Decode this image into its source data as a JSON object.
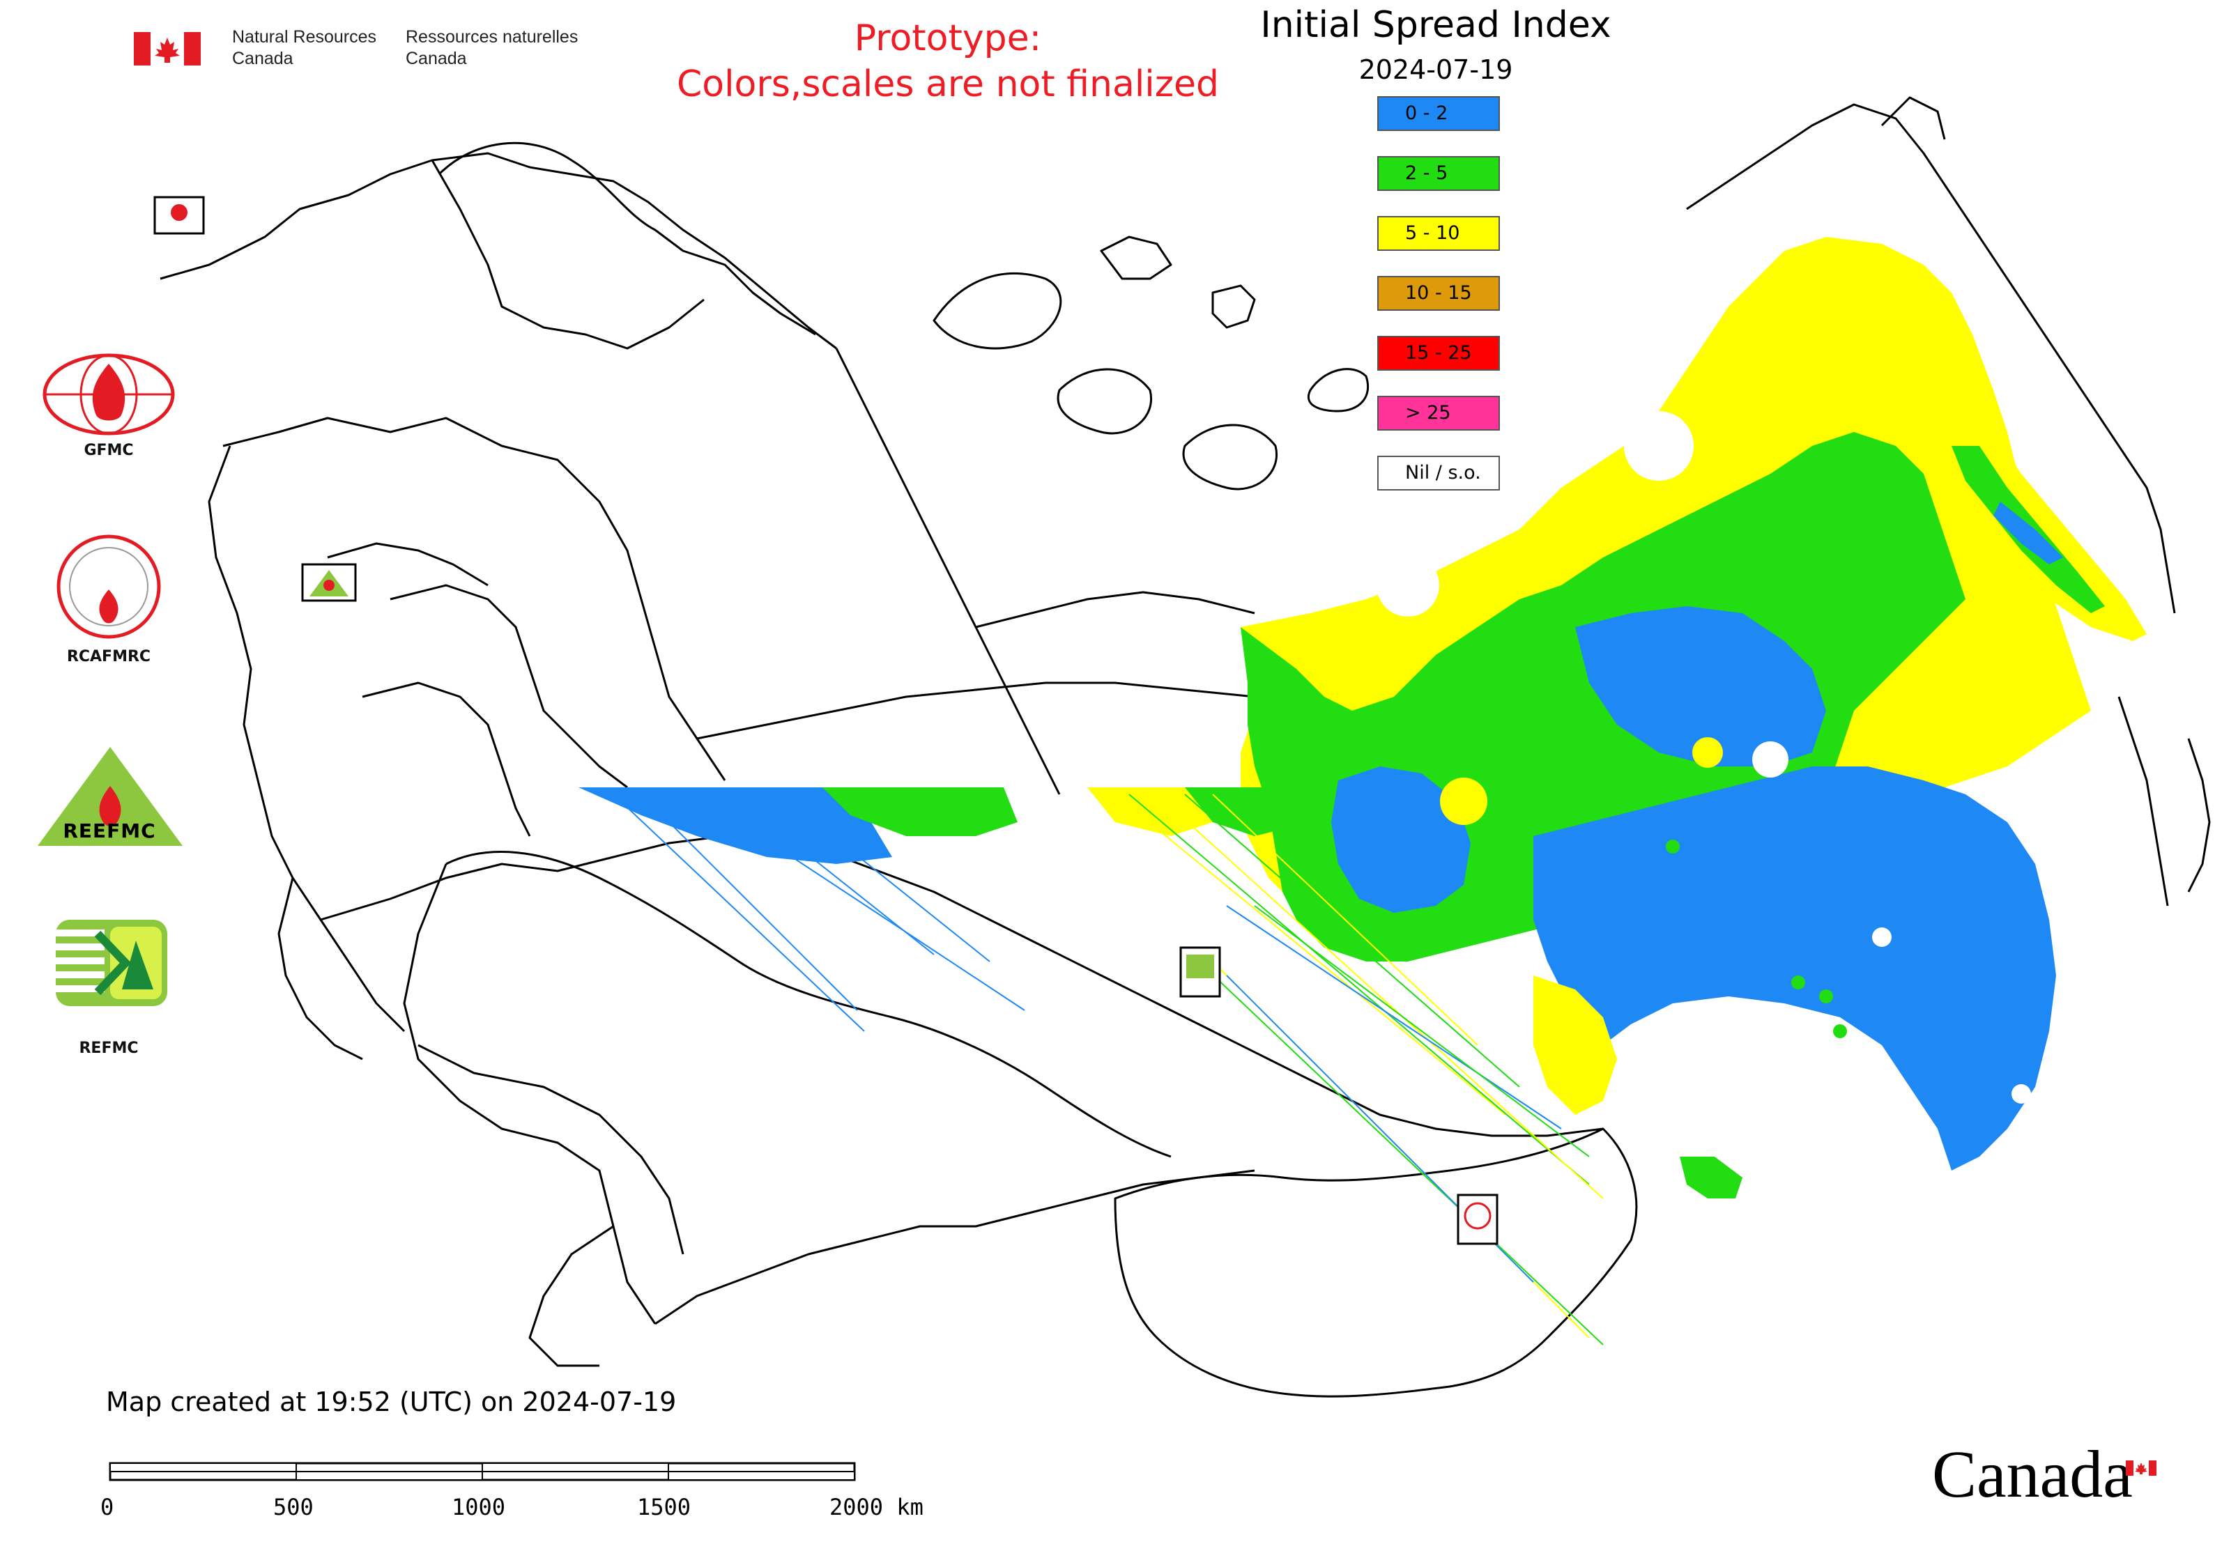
{
  "header": {
    "agency_en_line1": "Natural Resources",
    "agency_en_line2": "Canada",
    "agency_fr_line1": "Ressources naturelles",
    "agency_fr_line2": "Canada",
    "prototype_line1": "Prototype:",
    "prototype_line2": "Colors,scales are not finalized"
  },
  "map": {
    "title": "Initial Spread Index",
    "date": "2024-07-19"
  },
  "legend": {
    "items": [
      {
        "label": "0 - 2",
        "color": "#1e88f5"
      },
      {
        "label": "2 - 5",
        "color": "#22dd11"
      },
      {
        "label": "5 - 10",
        "color": "#ffff00"
      },
      {
        "label": "10 - 15",
        "color": "#dd9a0a"
      },
      {
        "label": "15 - 25",
        "color": "#ff0000"
      },
      {
        "label": "> 25",
        "color": "#ff3399"
      },
      {
        "label": "Nil / s.o.",
        "color": "#ffffff"
      }
    ]
  },
  "logos": {
    "gfmc": "GFMC",
    "rcafmrc": "RCAFMRC",
    "reefmc": "REEFMC",
    "refmc": "REFMC"
  },
  "footer": {
    "created": "Map created at 19:52 (UTC) on 2024-07-19",
    "scale_labels": [
      "0",
      "500",
      "1000",
      "1500",
      "2000 km"
    ],
    "wordmark": "Canada"
  },
  "colors": {
    "accent_red": "#ee1c25",
    "flag_red": "#e31b23"
  }
}
